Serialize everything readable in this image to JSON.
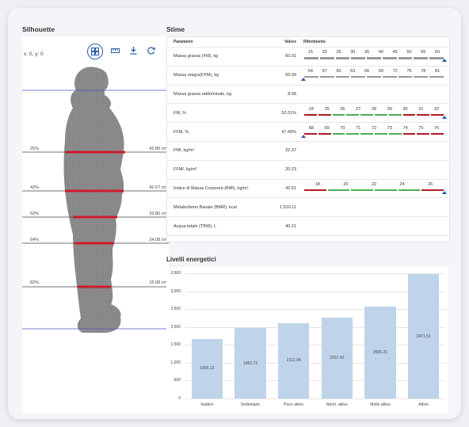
{
  "silhouette": {
    "title": "Silhouette",
    "coord_readout": "x: 0, y: 0",
    "toolbar": [
      "grid-icon",
      "ruler-icon",
      "download-icon",
      "refresh-icon"
    ],
    "measures": [
      {
        "pct": "25%",
        "cm": "42.80 cm"
      },
      {
        "pct": "42%",
        "cm": "42.67 cm"
      },
      {
        "pct": "53%",
        "cm": "33.80 cm"
      },
      {
        "pct": "64%",
        "cm": "24.08 cm"
      },
      {
        "pct": "82%",
        "cm": "15.08 cm"
      }
    ]
  },
  "stime": {
    "title": "Stime",
    "headers": {
      "param": "Parametro",
      "value": "Valore",
      "ref": "Riferimento"
    },
    "rows": [
      {
        "param": "Massa grassa (FM), kg",
        "value": "60.91",
        "ticks": [
          "15",
          "20",
          "25",
          "30",
          "35",
          "40",
          "45",
          "50",
          "55",
          "60"
        ],
        "segments": [
          "#999",
          "#999",
          "#999",
          "#999",
          "#999",
          "#999",
          "#999",
          "#999",
          "#999"
        ],
        "marker": 1.0
      },
      {
        "param": "Massa magra(FFM), kg",
        "value": "55.09",
        "ticks": [
          "54",
          "57",
          "60",
          "63",
          "66",
          "69",
          "72",
          "75",
          "78",
          "81"
        ],
        "segments": [
          "#999",
          "#999",
          "#999",
          "#999",
          "#999",
          "#999",
          "#999",
          "#999",
          "#999"
        ],
        "marker": 0.0
      },
      {
        "param": "Massa grassa addominale, kg",
        "value": "8.58",
        "ticks": [],
        "segments": [],
        "marker": null
      },
      {
        "param": "FM, %",
        "value": "52.51%",
        "ticks": [
          "24",
          "25",
          "26",
          "27",
          "28",
          "29",
          "30",
          "31",
          "32"
        ],
        "segments": [
          "#b01a24",
          "#b01a24",
          "#4caf50",
          "#4caf50",
          "#4caf50",
          "#4caf50",
          "#4caf50",
          "#b01a24",
          "#b01a24",
          "#b01a24"
        ],
        "marker": 1.0
      },
      {
        "param": "FFM, %",
        "value": "47.49%",
        "ticks": [
          "68",
          "69",
          "70",
          "71",
          "72",
          "73",
          "74",
          "75",
          "76"
        ],
        "segments": [
          "#b01a24",
          "#b01a24",
          "#4caf50",
          "#4caf50",
          "#4caf50",
          "#4caf50",
          "#4caf50",
          "#b01a24",
          "#b01a24",
          "#b01a24"
        ],
        "marker": 0.0
      },
      {
        "param": "FMI, kg/m²",
        "value": "22.37",
        "ticks": [],
        "segments": [],
        "marker": null
      },
      {
        "param": "FFMI, kg/m²",
        "value": "20.23",
        "ticks": [],
        "segments": [],
        "marker": null
      },
      {
        "param": "Indice di Massa Corporea (BMI), kg/m²",
        "value": "42.61",
        "ticks": [
          "18",
          "20",
          "22",
          "24",
          "26"
        ],
        "segments": [
          "#b01a24",
          "#4caf50",
          "#4caf50",
          "#4caf50",
          "#4caf50",
          "#b01a24"
        ],
        "marker": 1.0
      },
      {
        "param": "Metabolismo Basale (BMR), kcal",
        "value": "1,510.11",
        "ticks": [],
        "segments": [],
        "marker": null
      },
      {
        "param": "Acqua totale (TBW), L",
        "value": "40.21",
        "ticks": [],
        "segments": [],
        "marker": null
      }
    ]
  },
  "energy": {
    "title": "Livelli energetici",
    "chart_data": {
      "type": "bar",
      "categories": [
        "Inattivo",
        "Sedentario",
        "Poco attivo",
        "Norm. attivo",
        "Molto attivo",
        "Attivo"
      ],
      "values": [
        1665.12,
        1963.73,
        2112.04,
        2267.43,
        2565.21,
        3471.51
      ],
      "value_labels": [
        "1665.12",
        "1963.73",
        "2112.04",
        "2267.43",
        "2565.21",
        "3471.51"
      ],
      "yticks": [
        "0",
        "500",
        "1,000",
        "1,500",
        "2,000",
        "2,500",
        "3,000",
        "3,500"
      ],
      "ylim": [
        0,
        3500
      ],
      "bar_color": "#bfd4ea"
    }
  }
}
